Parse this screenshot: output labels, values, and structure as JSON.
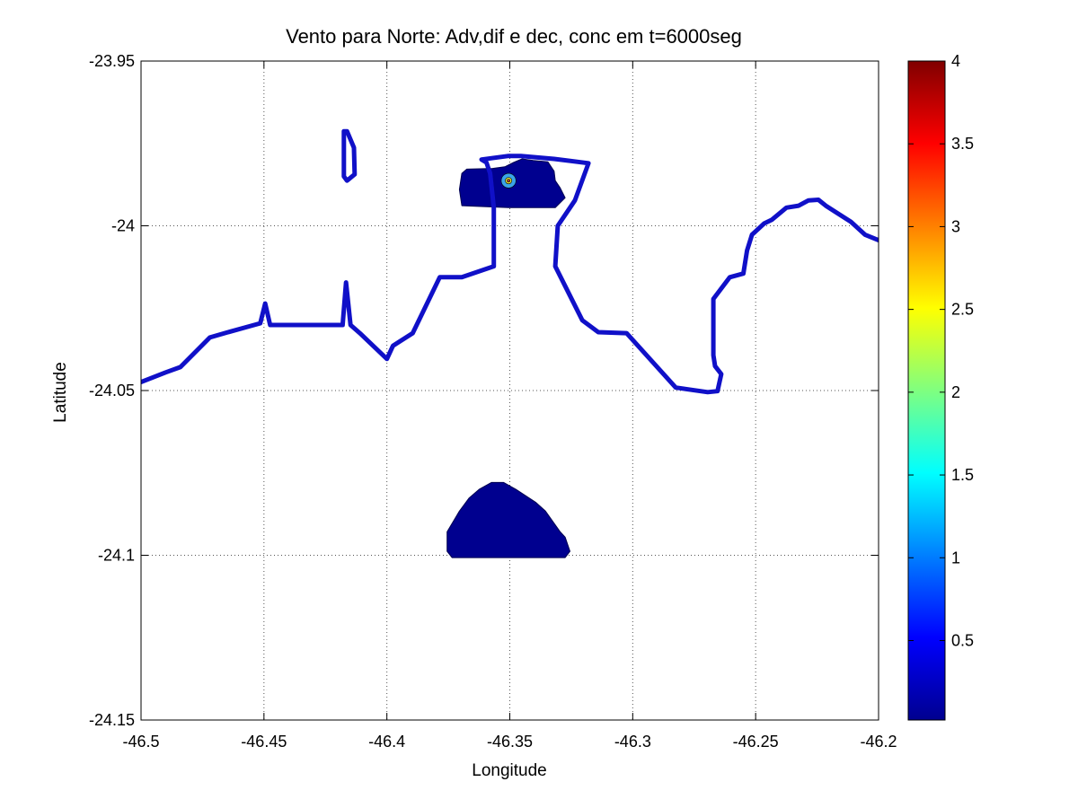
{
  "chart_data": {
    "type": "contour-map",
    "title": "Vento para Norte: Adv,dif e dec, conc em t=6000seg",
    "xlabel": "Longitude",
    "ylabel": "Latitude",
    "xlim": [
      -46.5,
      -46.2
    ],
    "ylim": [
      -24.15,
      -23.95
    ],
    "xticks": [
      -46.5,
      -46.45,
      -46.4,
      -46.35,
      -46.3,
      -46.25,
      -46.2
    ],
    "xtick_labels": [
      "-46.5",
      "-46.45",
      "-46.4",
      "-46.35",
      "-46.3",
      "-46.25",
      "-46.2"
    ],
    "yticks": [
      -23.95,
      -24,
      -24.05,
      -24.1,
      -24.15
    ],
    "ytick_labels": [
      "-23.95",
      "-24",
      "-24.05",
      "-24.1",
      "-24.15"
    ],
    "grid": true,
    "grid_style": "dotted",
    "colormap": "jet",
    "colorbar": {
      "range": [
        0.02,
        4
      ],
      "ticks": [
        0.5,
        1,
        1.5,
        2,
        2.5,
        3,
        3.5,
        4
      ],
      "tick_labels": [
        "0.5",
        "1",
        "1.5",
        "2",
        "2.5",
        "3",
        "3.5",
        "4"
      ]
    },
    "coastline_color": "#1010c8",
    "fill_color": "#00008f",
    "coastline": [
      [
        -46.5,
        -24.0474
      ],
      [
        -46.49,
        -24.0445
      ],
      [
        -46.484,
        -24.0429
      ],
      [
        -46.472,
        -24.0339
      ],
      [
        -46.466,
        -24.0326
      ],
      [
        -46.4555,
        -24.0304
      ],
      [
        -46.4515,
        -24.0296
      ],
      [
        -46.4495,
        -24.0236
      ],
      [
        -46.4475,
        -24.0301
      ],
      [
        -46.418,
        -24.0301
      ],
      [
        -46.4166,
        -24.0172
      ],
      [
        -46.4148,
        -24.0301
      ],
      [
        -46.411,
        -24.0326
      ],
      [
        -46.4,
        -24.0404
      ],
      [
        -46.3975,
        -24.0364
      ],
      [
        -46.3895,
        -24.0326
      ],
      [
        -46.3785,
        -24.0156
      ],
      [
        -46.376,
        -24.0156
      ],
      [
        -46.3695,
        -24.0156
      ],
      [
        -46.3565,
        -24.0123
      ],
      [
        -46.3565,
        -23.9945
      ],
      [
        -46.358,
        -23.9841
      ],
      [
        -46.3595,
        -23.9808
      ],
      [
        -46.3615,
        -23.9799
      ],
      [
        -46.3505,
        -23.9788
      ],
      [
        -46.3455,
        -23.9788
      ],
      [
        -46.332,
        -23.9797
      ],
      [
        -46.318,
        -23.981
      ],
      [
        -46.3235,
        -23.9923
      ],
      [
        -46.3305,
        -24.0
      ],
      [
        -46.3315,
        -24.0123
      ],
      [
        -46.3205,
        -24.0287
      ],
      [
        -46.314,
        -24.0323
      ],
      [
        -46.3025,
        -24.0326
      ],
      [
        -46.2825,
        -24.0491
      ],
      [
        -46.2695,
        -24.0505
      ],
      [
        -46.2655,
        -24.0502
      ],
      [
        -46.264,
        -24.045
      ],
      [
        -46.2665,
        -24.0426
      ],
      [
        -46.2672,
        -24.0393
      ],
      [
        -46.2672,
        -24.0222
      ],
      [
        -46.2605,
        -24.0156
      ],
      [
        -46.255,
        -24.0145
      ],
      [
        -46.2535,
        -24.0075
      ],
      [
        -46.2515,
        -24.0027
      ],
      [
        -46.2465,
        -23.9993
      ],
      [
        -46.2435,
        -23.9982
      ],
      [
        -46.2375,
        -23.9945
      ],
      [
        -46.2325,
        -23.9939
      ],
      [
        -46.2285,
        -23.9923
      ],
      [
        -46.2245,
        -23.9921
      ],
      [
        -46.2215,
        -23.9939
      ],
      [
        -46.2175,
        -23.9958
      ],
      [
        -46.2112,
        -23.9988
      ],
      [
        -46.2055,
        -24.0027
      ],
      [
        -46.2,
        -24.0044
      ]
    ],
    "island": [
      [
        -46.4175,
        -23.9713
      ],
      [
        -46.4162,
        -23.9713
      ],
      [
        -46.4134,
        -23.9763
      ],
      [
        -46.4131,
        -23.9844
      ],
      [
        -46.4162,
        -23.9863
      ],
      [
        -46.4175,
        -23.985
      ]
    ],
    "filled_regions": [
      {
        "name": "estuary-basin",
        "polygon": [
          [
            -46.3695,
            -23.9841
          ],
          [
            -46.3675,
            -23.9828
          ],
          [
            -46.357,
            -23.9826
          ],
          [
            -46.352,
            -23.9821
          ],
          [
            -46.3485,
            -23.9808
          ],
          [
            -46.345,
            -23.9797
          ],
          [
            -46.3405,
            -23.9802
          ],
          [
            -46.3345,
            -23.9806
          ],
          [
            -46.332,
            -23.9834
          ],
          [
            -46.3315,
            -23.9863
          ],
          [
            -46.3295,
            -23.9885
          ],
          [
            -46.3275,
            -23.9915
          ],
          [
            -46.3315,
            -23.9945
          ],
          [
            -46.3505,
            -23.9945
          ],
          [
            -46.3695,
            -23.9939
          ],
          [
            -46.3705,
            -23.989
          ]
        ]
      },
      {
        "name": "plume-region",
        "polygon": [
          [
            -46.3735,
            -24.1007
          ],
          [
            -46.3755,
            -24.0988
          ],
          [
            -46.3755,
            -24.0929
          ],
          [
            -46.3705,
            -24.0866
          ],
          [
            -46.3665,
            -24.0826
          ],
          [
            -46.3625,
            -24.08
          ],
          [
            -46.3575,
            -24.0779
          ],
          [
            -46.3525,
            -24.0779
          ],
          [
            -46.3475,
            -24.08
          ],
          [
            -46.3395,
            -24.0839
          ],
          [
            -46.3355,
            -24.0866
          ],
          [
            -46.3295,
            -24.0929
          ],
          [
            -46.3275,
            -24.0945
          ],
          [
            -46.3255,
            -24.0988
          ],
          [
            -46.3275,
            -24.1007
          ]
        ]
      }
    ],
    "source_marker": {
      "lon": -46.3505,
      "lat": -23.9863,
      "levels": [
        {
          "value": 1.0,
          "color": "#3aa4e8",
          "radius_deg": 0.003
        },
        {
          "value": 2.6,
          "color": "#e0e030",
          "radius_deg": 0.0013
        },
        {
          "value": 3.6,
          "color": "#b0402a",
          "radius_deg": 0.0006
        }
      ]
    }
  }
}
